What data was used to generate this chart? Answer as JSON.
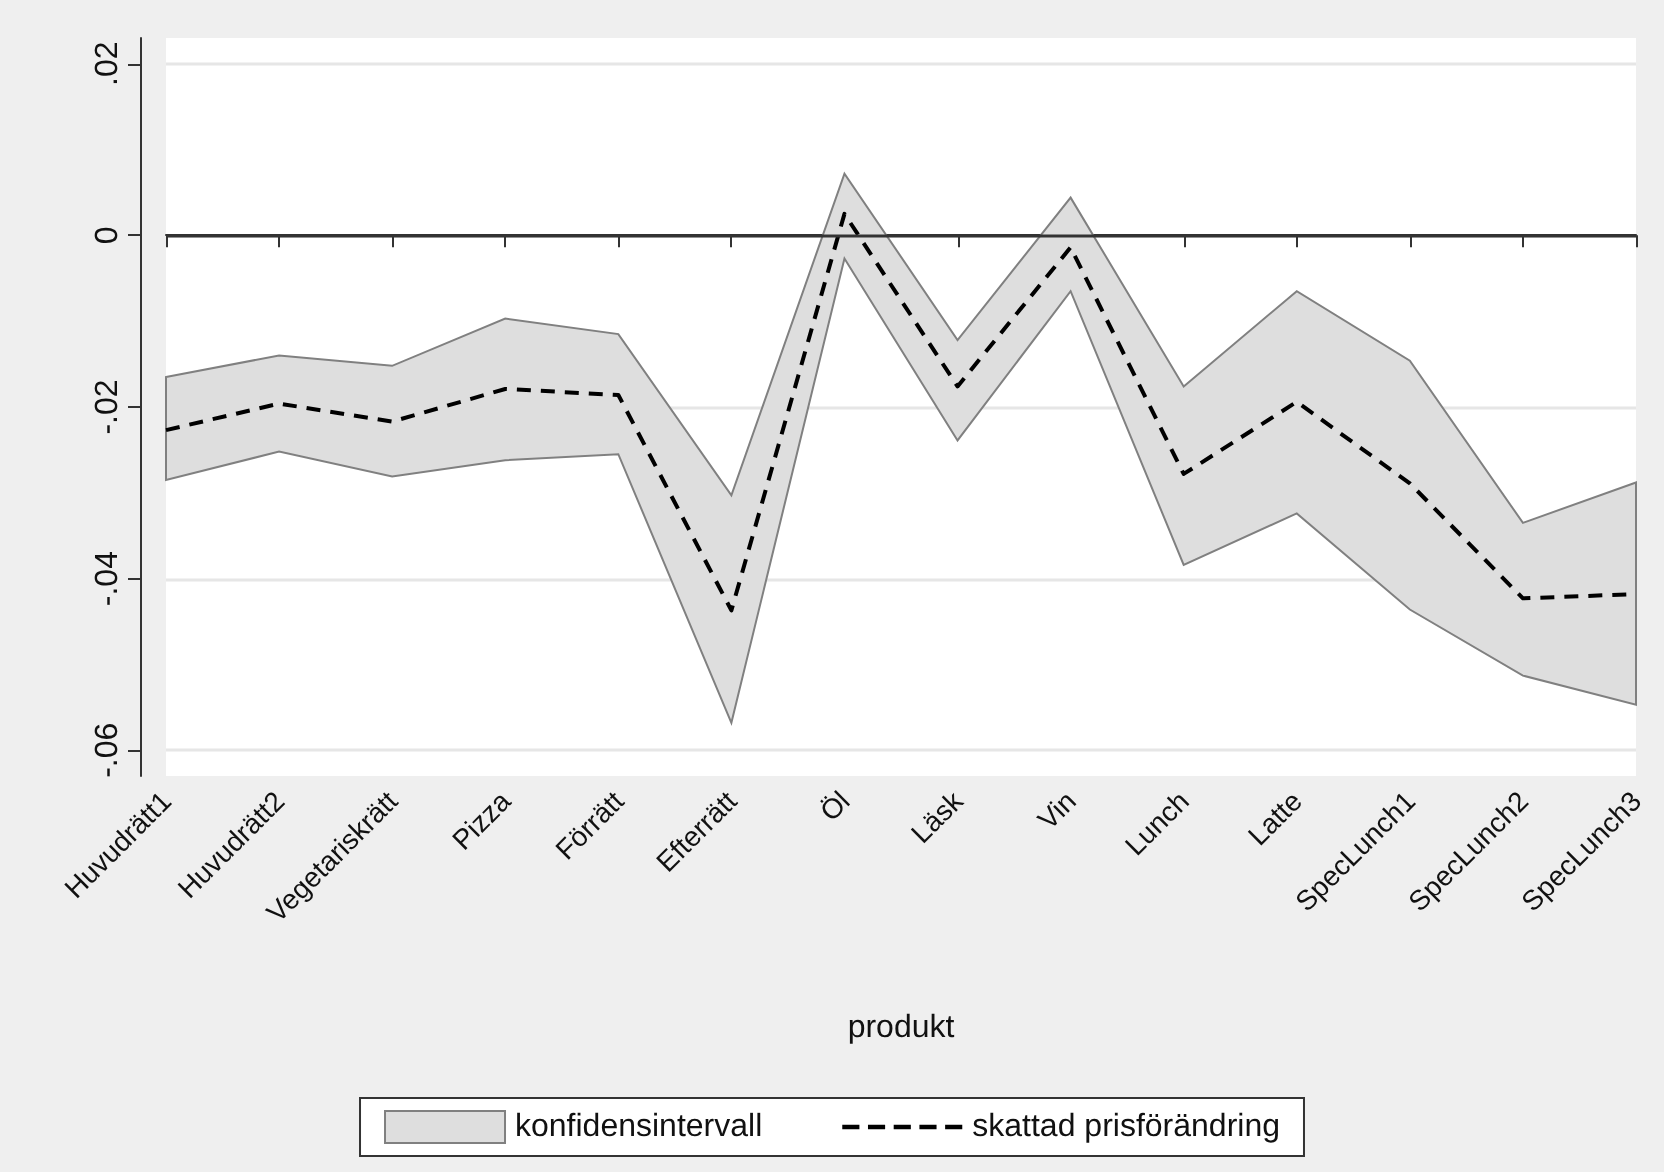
{
  "chart_data": {
    "type": "line",
    "xlabel": "produkt",
    "categories": [
      "Huvudrätt1",
      "Huvudrätt2",
      "Vegetariskrätt",
      "Pizza",
      "Förrätt",
      "Efterrätt",
      "Öl",
      "Läsk",
      "Vin",
      "Lunch",
      "Latte",
      "SpecLunch1",
      "SpecLunch2",
      "SpecLunch3"
    ],
    "series": [
      {
        "name": "skattad prisförändring",
        "color": "#000000",
        "line_style": "dashed",
        "values": [
          -0.0227,
          -0.0196,
          -0.0217,
          -0.0179,
          -0.0186,
          -0.0437,
          0.0025,
          -0.0176,
          -0.0014,
          -0.0278,
          -0.0194,
          -0.0289,
          -0.0423,
          -0.0418
        ],
        "lower": [
          -0.0285,
          -0.0252,
          -0.0281,
          -0.0262,
          -0.0255,
          -0.0568,
          -0.0027,
          -0.0239,
          -0.0065,
          -0.0384,
          -0.0324,
          -0.0436,
          -0.0513,
          -0.0547
        ],
        "upper": [
          -0.0165,
          -0.014,
          -0.0152,
          -0.0097,
          -0.0115,
          -0.0303,
          0.0072,
          -0.0122,
          0.0044,
          -0.0176,
          -0.0065,
          -0.0146,
          -0.0335,
          -0.0288
        ]
      }
    ],
    "annotations": [
      "konfidensintervall"
    ],
    "ylim": [
      -0.063,
      0.023
    ],
    "yticks": [
      {
        "value": -0.06,
        "label": "-.06"
      },
      {
        "value": -0.04,
        "label": "-.04"
      },
      {
        "value": -0.02,
        "label": "-.02"
      },
      0,
      {
        "value": 0.02,
        "label": ".02"
      }
    ],
    "ref_lines": [
      {
        "axis": "y",
        "value": 0,
        "color": "#333333"
      }
    ],
    "grid": "y",
    "legend": "bottom",
    "marker": "none"
  }
}
